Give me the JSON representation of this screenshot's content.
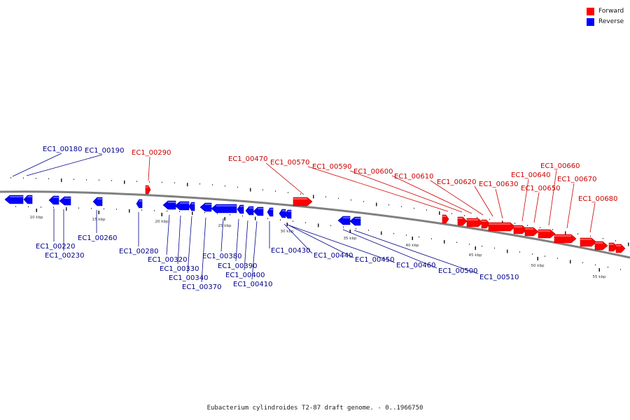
{
  "legend": {
    "forward_label": "Forward",
    "reverse_label": "Reverse",
    "forward_color": "#ff0000",
    "reverse_color": "#0000ff"
  },
  "caption": "Eubacterium cylindroides T2-87 draft genome. - 0..1966750",
  "track": {
    "ruler_labels": [
      "10 kbp",
      "15 kbp",
      "20 kbp",
      "25 kbp",
      "30 kbp",
      "35 kbp",
      "40 kbp",
      "45 kbp",
      "50 kbp",
      "55 kbp"
    ]
  },
  "genes": {
    "reverse": [
      "EC1_00180",
      "EC1_00190",
      "EC1_00220",
      "EC1_00230",
      "EC1_00260",
      "EC1_00280",
      "EC1_00320",
      "EC1_00330",
      "EC1_00340",
      "EC1_00370",
      "EC1_00380",
      "EC1_00390",
      "EC1_00400",
      "EC1_00410",
      "EC1_00430",
      "EC1_00440",
      "EC1_00450",
      "EC1_00460",
      "EC1_00500",
      "EC1_00510"
    ],
    "forward": [
      "EC1_00290",
      "EC1_00470",
      "EC1_00570",
      "EC1_00590",
      "EC1_00600",
      "EC1_00610",
      "EC1_00620",
      "EC1_00630",
      "EC1_00640",
      "EC1_00650",
      "EC1_00660",
      "EC1_00670",
      "EC1_00680"
    ]
  }
}
